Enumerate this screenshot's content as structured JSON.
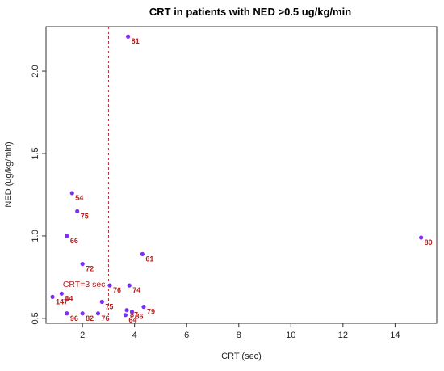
{
  "chart_data": {
    "type": "scatter",
    "title": "CRT in patients with NED >0.5 ug/kg/min",
    "xlabel": "CRT (sec)",
    "ylabel": "NED (ug/kg/min)",
    "xlim": [
      0.6,
      15.6
    ],
    "ylim": [
      0.47,
      2.27
    ],
    "x_ticks": [
      2,
      4,
      6,
      8,
      10,
      12,
      14
    ],
    "y_ticks": [
      0.5,
      1.0,
      1.5,
      2.0
    ],
    "y_tick_labels": [
      "0.5",
      "1.0",
      "1.5",
      "2.0"
    ],
    "grid": false,
    "marker_color": "#7b2ff7",
    "label_color": "#b42020",
    "reference_line": {
      "x": 3,
      "label": "CRT=3 sec",
      "color": "#d62728",
      "style": "dashed"
    },
    "points": [
      {
        "x": 3.75,
        "y": 2.21,
        "label": "81"
      },
      {
        "x": 1.6,
        "y": 1.26,
        "label": "54"
      },
      {
        "x": 1.8,
        "y": 1.15,
        "label": "75"
      },
      {
        "x": 1.4,
        "y": 1.0,
        "label": "66"
      },
      {
        "x": 15.0,
        "y": 0.99,
        "label": "80"
      },
      {
        "x": 4.3,
        "y": 0.89,
        "label": "61"
      },
      {
        "x": 2.0,
        "y": 0.83,
        "label": "72"
      },
      {
        "x": 3.05,
        "y": 0.7,
        "label": "76"
      },
      {
        "x": 3.8,
        "y": 0.7,
        "label": "74"
      },
      {
        "x": 1.2,
        "y": 0.65,
        "label": "84"
      },
      {
        "x": 0.85,
        "y": 0.63,
        "label": "147"
      },
      {
        "x": 2.75,
        "y": 0.6,
        "label": "75"
      },
      {
        "x": 4.35,
        "y": 0.57,
        "label": "79"
      },
      {
        "x": 3.7,
        "y": 0.55,
        "label": "87"
      },
      {
        "x": 3.9,
        "y": 0.54,
        "label": "86"
      },
      {
        "x": 1.4,
        "y": 0.53,
        "label": "96"
      },
      {
        "x": 2.0,
        "y": 0.53,
        "label": "82"
      },
      {
        "x": 2.6,
        "y": 0.53,
        "label": "76"
      },
      {
        "x": 3.65,
        "y": 0.52,
        "label": "64"
      }
    ]
  }
}
